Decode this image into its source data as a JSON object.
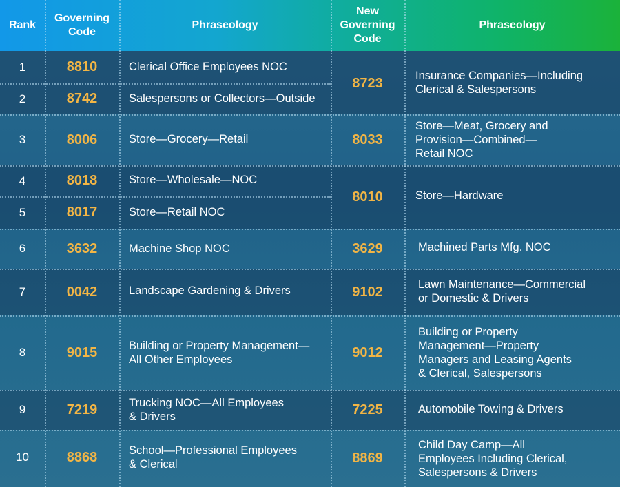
{
  "header": {
    "rank": "Rank",
    "governing_code": "Governing\nCode",
    "phraseology": "Phraseology",
    "new_governing_code": "New\nGoverning\nCode",
    "new_phraseology": "Phraseology"
  },
  "rows": [
    {
      "rank": "1",
      "code": "8810",
      "phrase": "Clerical Office Employees NOC"
    },
    {
      "rank": "2",
      "code": "8742",
      "phrase": "Salespersons or Collectors—Outside"
    },
    {
      "rank": "3",
      "code": "8006",
      "phrase": "Store—Grocery—Retail"
    },
    {
      "rank": "4",
      "code": "8018",
      "phrase": "Store—Wholesale—NOC"
    },
    {
      "rank": "5",
      "code": "8017",
      "phrase": "Store—Retail NOC"
    },
    {
      "rank": "6",
      "code": "3632",
      "phrase": "Machine Shop NOC"
    },
    {
      "rank": "7",
      "code": "0042",
      "phrase": "Landscape Gardening & Drivers"
    },
    {
      "rank": "8",
      "code": "9015",
      "phrase": "Building or Property Management—\nAll Other Employees"
    },
    {
      "rank": "9",
      "code": "7219",
      "phrase": "Trucking NOC—All Employees\n& Drivers"
    },
    {
      "rank": "10",
      "code": "8868",
      "phrase": "School—Professional Employees\n& Clerical"
    }
  ],
  "new_codes": [
    {
      "code": "8723",
      "phrase": "Insurance Companies—Including\nClerical & Salespersons"
    },
    {
      "code": "8033",
      "phrase": "Store—Meat, Grocery and\nProvision—Combined—\nRetail NOC"
    },
    {
      "code": "8010",
      "phrase": "Store—Hardware"
    },
    {
      "code": "3629",
      "phrase": "Machined Parts Mfg. NOC"
    },
    {
      "code": "9102",
      "phrase": "Lawn Maintenance—Commercial\nor Domestic & Drivers"
    },
    {
      "code": "9012",
      "phrase": "Building or Property\nManagement—Property\nManagers and Leasing Agents\n& Clerical, Salespersons"
    },
    {
      "code": "7225",
      "phrase": "Automobile Towing & Drivers"
    },
    {
      "code": "8869",
      "phrase": "Child Day Camp—All\nEmployees Including Clerical,\nSalespersons & Drivers"
    }
  ],
  "colors": {
    "code_text": "#f2b545",
    "header_gradient_start": "#1298e8",
    "header_gradient_end": "#1bb23a"
  }
}
